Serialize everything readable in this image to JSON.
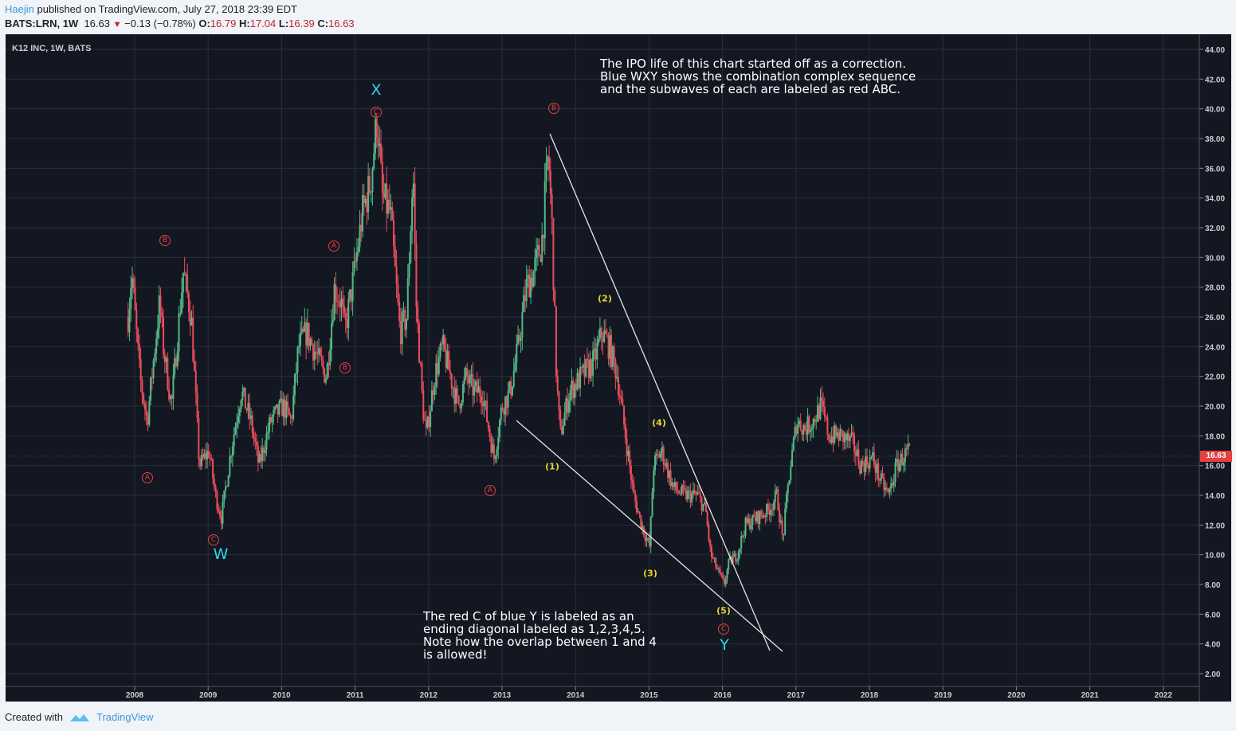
{
  "header": {
    "author": "Haejin",
    "published": "published on TradingView.com, July 27, 2018 23:39 EDT",
    "symbol": "BATS:LRN, 1W",
    "last": "16.63",
    "change": "−0.13 (−0.78%)",
    "o_label": "O:",
    "o": "16.79",
    "h_label": "H:",
    "h": "17.04",
    "l_label": "L:",
    "l": "16.39",
    "c_label": "C:",
    "c": "16.63"
  },
  "footer": {
    "created": "Created with",
    "brand": "TradingView"
  },
  "colors": {
    "up": "#53b987",
    "down": "#eb4d5c",
    "bg": "#131722",
    "grid": "#2a2e39",
    "wave_red": "#e8403f",
    "wave_blue": "#32d3e8",
    "wave_yellow": "#e8d430"
  },
  "chart_data": {
    "type": "candlestick",
    "title": "K12 INC, 1W, BATS",
    "ylim": [
      2,
      44
    ],
    "yticks": [
      "44.00",
      "42.00",
      "40.00",
      "38.00",
      "36.00",
      "34.00",
      "32.00",
      "30.00",
      "28.00",
      "26.00",
      "24.00",
      "22.00",
      "20.00",
      "18.00",
      "16.00",
      "14.00",
      "12.00",
      "10.00",
      "8.00",
      "6.00",
      "4.00",
      "2.00"
    ],
    "xticks": [
      "2008",
      "2009",
      "2010",
      "2011",
      "2012",
      "2013",
      "2014",
      "2015",
      "2016",
      "2017",
      "2018",
      "2019",
      "2020",
      "2021",
      "2022"
    ],
    "last_price": "16.63",
    "approx_close_path": [
      [
        2007.91,
        26
      ],
      [
        2007.96,
        29
      ],
      [
        2008.07,
        22
      ],
      [
        2008.17,
        19
      ],
      [
        2008.34,
        27
      ],
      [
        2008.39,
        24
      ],
      [
        2008.5,
        20
      ],
      [
        2008.66,
        29
      ],
      [
        2008.77,
        26
      ],
      [
        2008.88,
        16
      ],
      [
        2009.01,
        17
      ],
      [
        2009.1,
        14
      ],
      [
        2009.18,
        12.5
      ],
      [
        2009.31,
        17
      ],
      [
        2009.45,
        21
      ],
      [
        2009.58,
        19
      ],
      [
        2009.69,
        16
      ],
      [
        2009.85,
        19
      ],
      [
        2010.02,
        20
      ],
      [
        2010.13,
        19
      ],
      [
        2010.23,
        24
      ],
      [
        2010.34,
        25
      ],
      [
        2010.51,
        23
      ],
      [
        2010.61,
        22
      ],
      [
        2010.72,
        28
      ],
      [
        2010.81,
        27
      ],
      [
        2010.86,
        25
      ],
      [
        2010.99,
        29
      ],
      [
        2011.1,
        33
      ],
      [
        2011.21,
        35
      ],
      [
        2011.3,
        39.5
      ],
      [
        2011.37,
        34
      ],
      [
        2011.48,
        33
      ],
      [
        2011.56,
        28
      ],
      [
        2011.61,
        25
      ],
      [
        2011.7,
        26
      ],
      [
        2011.79,
        36
      ],
      [
        2011.83,
        27
      ],
      [
        2011.92,
        20
      ],
      [
        2011.97,
        18
      ],
      [
        2012.08,
        22
      ],
      [
        2012.19,
        24
      ],
      [
        2012.3,
        22
      ],
      [
        2012.4,
        20
      ],
      [
        2012.51,
        22
      ],
      [
        2012.62,
        21
      ],
      [
        2012.73,
        21
      ],
      [
        2012.8,
        19
      ],
      [
        2012.89,
        16.5
      ],
      [
        2013.0,
        20
      ],
      [
        2013.11,
        21
      ],
      [
        2013.22,
        24
      ],
      [
        2013.33,
        28
      ],
      [
        2013.43,
        29
      ],
      [
        2013.54,
        31
      ],
      [
        2013.63,
        37
      ],
      [
        2013.68,
        32
      ],
      [
        2013.74,
        22
      ],
      [
        2013.79,
        18
      ],
      [
        2013.92,
        21
      ],
      [
        2014.08,
        22
      ],
      [
        2014.25,
        23
      ],
      [
        2014.36,
        25
      ],
      [
        2014.46,
        24
      ],
      [
        2014.57,
        22
      ],
      [
        2014.68,
        18
      ],
      [
        2014.79,
        14
      ],
      [
        2014.9,
        12
      ],
      [
        2015.01,
        10.5
      ],
      [
        2015.06,
        16
      ],
      [
        2015.17,
        17
      ],
      [
        2015.33,
        14.5
      ],
      [
        2015.49,
        14
      ],
      [
        2015.66,
        14
      ],
      [
        2015.77,
        13
      ],
      [
        2015.84,
        10
      ],
      [
        2015.93,
        9
      ],
      [
        2016.02,
        8
      ],
      [
        2016.09,
        9.5
      ],
      [
        2016.2,
        10
      ],
      [
        2016.31,
        12
      ],
      [
        2016.47,
        12.5
      ],
      [
        2016.63,
        13
      ],
      [
        2016.74,
        14
      ],
      [
        2016.82,
        11
      ],
      [
        2016.9,
        15
      ],
      [
        2017.01,
        19
      ],
      [
        2017.12,
        18.5
      ],
      [
        2017.23,
        19
      ],
      [
        2017.34,
        20
      ],
      [
        2017.45,
        18
      ],
      [
        2017.61,
        18
      ],
      [
        2017.77,
        17.5
      ],
      [
        2017.88,
        16
      ],
      [
        2018.04,
        16.5
      ],
      [
        2018.15,
        15
      ],
      [
        2018.26,
        14
      ],
      [
        2018.37,
        16
      ],
      [
        2018.53,
        17
      ],
      [
        2018.56,
        16.63
      ]
    ],
    "annotations": {
      "red": [
        "B",
        "A",
        "C",
        "A",
        "B",
        "C",
        "B",
        "A",
        "C"
      ],
      "blue": [
        "X",
        "W",
        "Y"
      ],
      "yellow": [
        "(1)",
        "(2)",
        "(3)",
        "(4)",
        "(5)"
      ],
      "note_top": [
        "The IPO life of this chart started off as a correction.",
        "Blue WXY shows the combination complex sequence",
        "and the subwaves of each are labeled as red ABC."
      ],
      "note_bottom": [
        "The red C of blue Y is labeled as an",
        "ending diagonal labeled as 1,2,3,4,5.",
        "Note how the overlap between 1 and 4",
        "is allowed!"
      ]
    }
  }
}
